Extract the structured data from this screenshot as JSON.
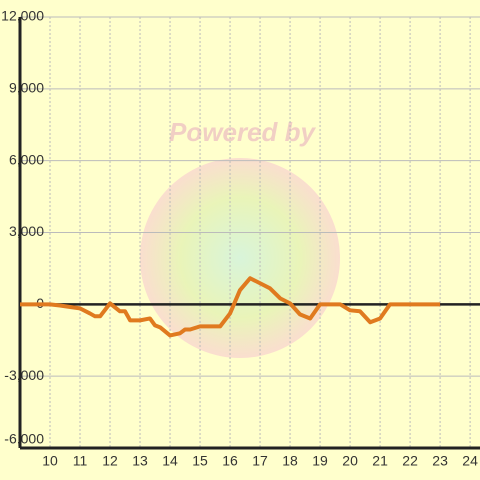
{
  "chart_data": {
    "type": "line",
    "watermark": "Powered by",
    "x": [
      9,
      10,
      10.33,
      10.5,
      11,
      11.33,
      11.5,
      11.67,
      12,
      12.33,
      12.5,
      12.67,
      13,
      13.33,
      13.5,
      13.67,
      14,
      14.33,
      14.5,
      14.67,
      15,
      15.33,
      15.67,
      16,
      16.33,
      16.67,
      17,
      17.33,
      17.67,
      18,
      18.33,
      18.67,
      19,
      19.33,
      19.67,
      20,
      20.33,
      20.67,
      21,
      21.33,
      22,
      23
    ],
    "series": [
      {
        "color": "#e07a1f",
        "values": [
          0,
          0,
          -50,
          -80,
          -170,
          -380,
          -500,
          -500,
          40,
          -290,
          -290,
          -670,
          -670,
          -590,
          -880,
          -960,
          -1300,
          -1210,
          -1050,
          -1050,
          -920,
          -920,
          -920,
          -380,
          590,
          1090,
          880,
          670,
          250,
          40,
          -420,
          -590,
          0,
          0,
          0,
          -250,
          -290,
          -750,
          -590,
          0,
          0,
          0
        ]
      }
    ],
    "xlim": [
      9,
      24.33
    ],
    "xticks": [
      10,
      11,
      12,
      13,
      14,
      15,
      16,
      17,
      18,
      19,
      20,
      21,
      22,
      23,
      24
    ],
    "ylim": [
      -6000,
      12000
    ],
    "yticks": [
      {
        "value": -6000,
        "label": "-6,000"
      },
      {
        "value": -3000,
        "label": "-3,000"
      },
      0,
      {
        "value": 3000,
        "label": "3,000"
      },
      {
        "value": 6000,
        "label": "6,000"
      },
      {
        "value": 9000,
        "label": "9,000"
      },
      {
        "value": 12000,
        "label": "12,000"
      }
    ],
    "grid": true
  }
}
